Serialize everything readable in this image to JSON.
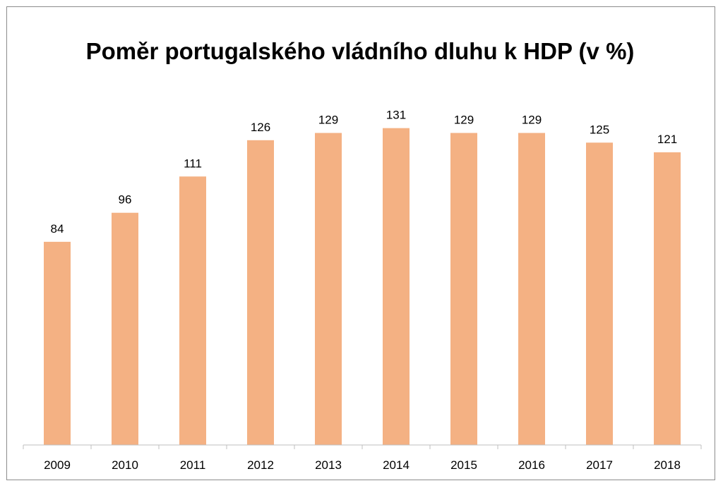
{
  "chart_data": {
    "type": "bar",
    "title": "Poměr portugalského vládního dluhu k HDP (v %)",
    "categories": [
      "2009",
      "2010",
      "2011",
      "2012",
      "2013",
      "2014",
      "2015",
      "2016",
      "2017",
      "2018"
    ],
    "values": [
      84,
      96,
      111,
      126,
      129,
      131,
      129,
      129,
      125,
      121
    ],
    "xlabel": "",
    "ylabel": "",
    "ylim": [
      0,
      140
    ],
    "grid": false,
    "legend": "none",
    "data_labels": true,
    "colors": {
      "bar": "#F4B183",
      "axis": "#bfbfbf",
      "border": "#8c8c8c"
    }
  }
}
